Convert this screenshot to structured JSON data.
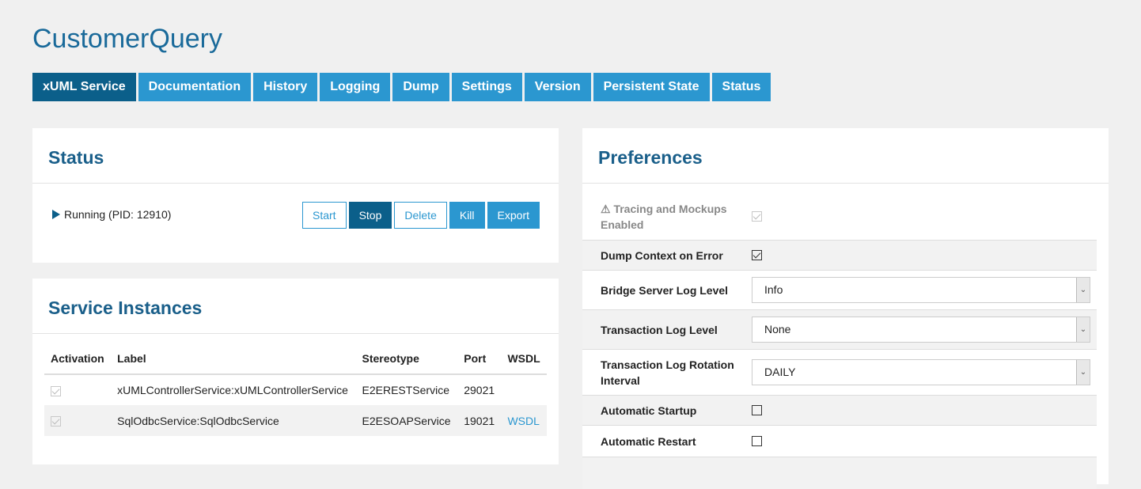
{
  "title": "CustomerQuery",
  "tabs": [
    "xUML Service",
    "Documentation",
    "History",
    "Logging",
    "Dump",
    "Settings",
    "Version",
    "Persistent State",
    "Status"
  ],
  "status": {
    "heading": "Status",
    "state": "Running (PID: 12910)",
    "buttons": [
      "Start",
      "Stop",
      "Delete",
      "Kill",
      "Export"
    ]
  },
  "instances": {
    "heading": "Service Instances",
    "columns": [
      "Activation",
      "Label",
      "Stereotype",
      "Port",
      "WSDL"
    ],
    "rows": [
      {
        "label": "xUMLControllerService:xUMLControllerService",
        "stereotype": "E2ERESTService",
        "port": "29021",
        "wsdl": ""
      },
      {
        "label": "SqlOdbcService:SqlOdbcService",
        "stereotype": "E2ESOAPService",
        "port": "19021",
        "wsdl": "WSDL"
      }
    ]
  },
  "preferences": {
    "heading": "Preferences",
    "tracing": "Tracing and Mockups Enabled",
    "dump_context": "Dump Context on Error",
    "bridge_log": {
      "label": "Bridge Server Log Level",
      "value": "Info"
    },
    "tx_log": {
      "label": "Transaction Log Level",
      "value": "None"
    },
    "tx_rotation": {
      "label": "Transaction Log Rotation Interval",
      "value": "DAILY"
    },
    "auto_startup": "Automatic Startup",
    "auto_restart": "Automatic Restart"
  }
}
